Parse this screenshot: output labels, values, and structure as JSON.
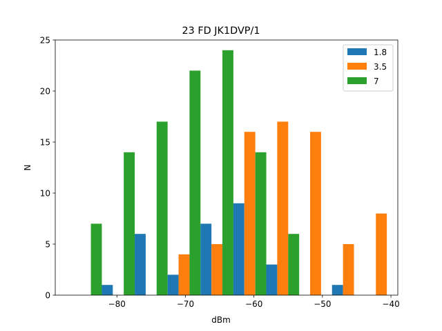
{
  "chart_data": {
    "type": "bar",
    "title": "23 FD JK1DVP/1",
    "xlabel": "dBm",
    "ylabel": "N",
    "xlim": [
      -89,
      -39
    ],
    "ylim": [
      0,
      25
    ],
    "xticks": [
      -80,
      -70,
      -60,
      -50,
      -40
    ],
    "xtick_labels": [
      "−80",
      "−70",
      "−60",
      "−50",
      "−40"
    ],
    "yticks": [
      0,
      5,
      10,
      15,
      20,
      25
    ],
    "ytick_labels": [
      "0",
      "5",
      "10",
      "15",
      "20",
      "25"
    ],
    "grid": false,
    "legend_position": "top-right",
    "bin_edges": [
      -87,
      -82.2,
      -77.4,
      -72.6,
      -67.8,
      -63,
      -58.2,
      -53.4,
      -48.6,
      -43.8,
      -39
    ],
    "series": [
      {
        "name": "1.8",
        "color": "#1f77b4",
        "values": [
          0,
          1,
          6,
          2,
          7,
          9,
          3,
          0,
          1,
          0
        ]
      },
      {
        "name": "3.5",
        "color": "#ff7f0e",
        "values": [
          0,
          0,
          0,
          4,
          5,
          16,
          17,
          16,
          5,
          8
        ]
      },
      {
        "name": "7",
        "color": "#2ca02c",
        "values": [
          7,
          14,
          17,
          22,
          24,
          14,
          6,
          0,
          0,
          0
        ]
      }
    ]
  }
}
